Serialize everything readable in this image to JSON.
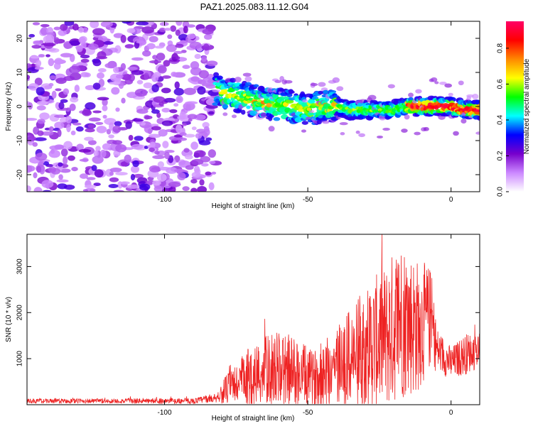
{
  "title": "PAZ1.2025.083.11.12.G04",
  "chart_data": [
    {
      "type": "heatmap",
      "xlabel": "Height of straight line (km)",
      "ylabel": "Frequency (Hz)",
      "xlim": [
        -148,
        10
      ],
      "ylim": [
        -25,
        25
      ],
      "xticks": [
        -100,
        -50,
        0
      ],
      "yticks": [
        -20,
        -10,
        0,
        10,
        20
      ],
      "colorbar": {
        "label": "Normalized spectral amplitude",
        "range": [
          0,
          0.95
        ],
        "ticks": [
          0.0,
          0.2,
          0.4,
          0.6,
          0.8
        ],
        "colors": [
          "#ffffff",
          "#cc88ff",
          "#7700cc",
          "#0000ff",
          "#00ffff",
          "#00ff00",
          "#ffff00",
          "#ff8800",
          "#ff0000",
          "#ff0066"
        ]
      },
      "features": {
        "noise_region_x": [
          -148,
          -82
        ],
        "signal_center_freq": [
          [
            -82,
            5
          ],
          [
            -75,
            3
          ],
          [
            -70,
            2
          ],
          [
            -65,
            1
          ],
          [
            -60,
            0.5
          ],
          [
            -55,
            0
          ],
          [
            -50,
            -1
          ],
          [
            -45,
            0
          ],
          [
            -40,
            0
          ],
          [
            -35,
            -1
          ],
          [
            -30,
            -1
          ],
          [
            -25,
            -1
          ],
          [
            -20,
            -1
          ],
          [
            -15,
            0
          ],
          [
            -10,
            0
          ],
          [
            -5,
            0
          ],
          [
            0,
            0
          ],
          [
            5,
            -1
          ],
          [
            10,
            -1
          ]
        ],
        "peak_amplitude_region_x": [
          -15,
          10
        ],
        "peak_amplitude": 0.9
      },
      "grid": false
    },
    {
      "type": "line",
      "xlabel": "Height of straight line (km)",
      "ylabel": "SNR (10 * v/v)",
      "xlim": [
        -148,
        10
      ],
      "ylim": [
        0,
        3700
      ],
      "xticks": [
        -100,
        -50,
        0
      ],
      "yticks": [
        1000,
        2000,
        3000
      ],
      "series": [
        {
          "color": "#ee2222",
          "envelope": [
            {
              "x": -148,
              "base": 80,
              "amp": 50
            },
            {
              "x": -90,
              "base": 80,
              "amp": 60
            },
            {
              "x": -82,
              "base": 150,
              "amp": 100
            },
            {
              "x": -78,
              "base": 350,
              "amp": 350
            },
            {
              "x": -70,
              "base": 600,
              "amp": 700
            },
            {
              "x": -62,
              "base": 800,
              "amp": 800
            },
            {
              "x": -55,
              "base": 700,
              "amp": 800
            },
            {
              "x": -48,
              "base": 550,
              "amp": 600
            },
            {
              "x": -42,
              "base": 800,
              "amp": 900
            },
            {
              "x": -35,
              "base": 1000,
              "amp": 1100
            },
            {
              "x": -28,
              "base": 1300,
              "amp": 1400
            },
            {
              "x": -22,
              "base": 1500,
              "amp": 1600
            },
            {
              "x": -18,
              "base": 1900,
              "amp": 1800
            },
            {
              "x": -12,
              "base": 1700,
              "amp": 1500
            },
            {
              "x": -7,
              "base": 1900,
              "amp": 1100
            },
            {
              "x": -5,
              "base": 1200,
              "amp": 500
            },
            {
              "x": 0,
              "base": 900,
              "amp": 350
            },
            {
              "x": 5,
              "base": 1100,
              "amp": 450
            },
            {
              "x": 10,
              "base": 1200,
              "amp": 400
            }
          ]
        }
      ],
      "grid": false
    }
  ]
}
